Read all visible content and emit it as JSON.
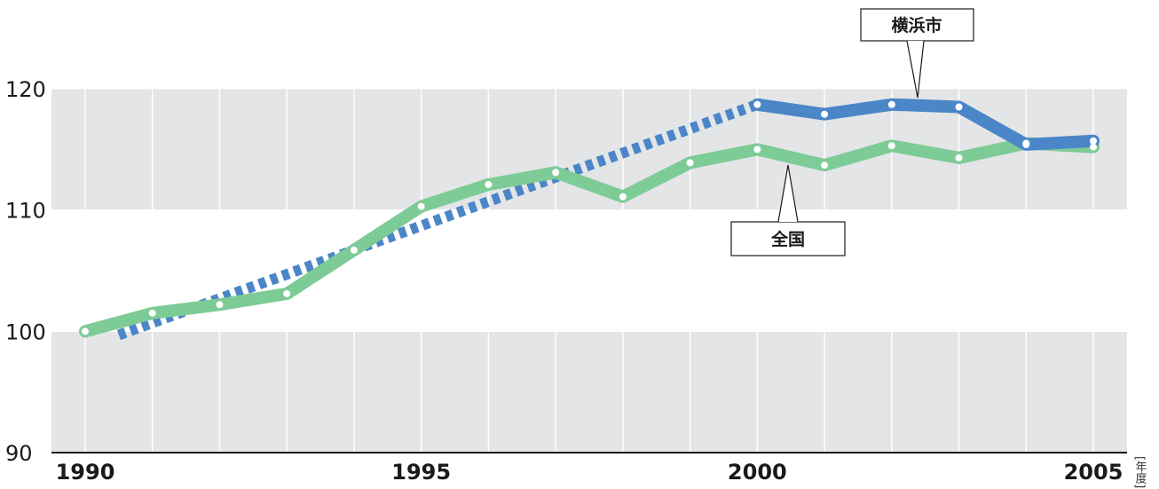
{
  "chart_data": {
    "type": "line",
    "x": [
      1990,
      1991,
      1992,
      1993,
      1994,
      1995,
      1996,
      1997,
      1998,
      1999,
      2000,
      2001,
      2002,
      2003,
      2004,
      2005
    ],
    "xticks": [
      {
        "value": 1990,
        "label": "1990"
      },
      {
        "value": 1995,
        "label": "1995"
      },
      {
        "value": 2000,
        "label": "2000"
      },
      {
        "value": 2005,
        "label": "2005"
      }
    ],
    "yticks": [
      {
        "value": 90,
        "label": "90"
      },
      {
        "value": 100,
        "label": "100"
      },
      {
        "value": 110,
        "label": "110"
      },
      {
        "value": 120,
        "label": "120"
      }
    ],
    "xlim": [
      1989.5,
      2005.5
    ],
    "ylim": [
      90,
      123
    ],
    "unit_label": "[年度]",
    "series": [
      {
        "name": "全国",
        "color": "#7dcb96",
        "values": [
          100.0,
          101.5,
          102.2,
          103.1,
          106.7,
          110.3,
          112.1,
          113.1,
          111.1,
          113.9,
          115.0,
          113.7,
          115.3,
          114.3,
          115.5,
          115.2
        ]
      },
      {
        "name": "横浜市",
        "color": "#4a86c8",
        "dashed_points": [
          [
            1990.5,
            99.7
          ],
          [
            2000,
            118.7
          ]
        ],
        "values": [
          null,
          null,
          null,
          null,
          null,
          null,
          null,
          null,
          null,
          null,
          118.7,
          117.9,
          118.7,
          118.5,
          115.4,
          115.7
        ]
      }
    ],
    "grid": true,
    "legend": "callouts"
  }
}
